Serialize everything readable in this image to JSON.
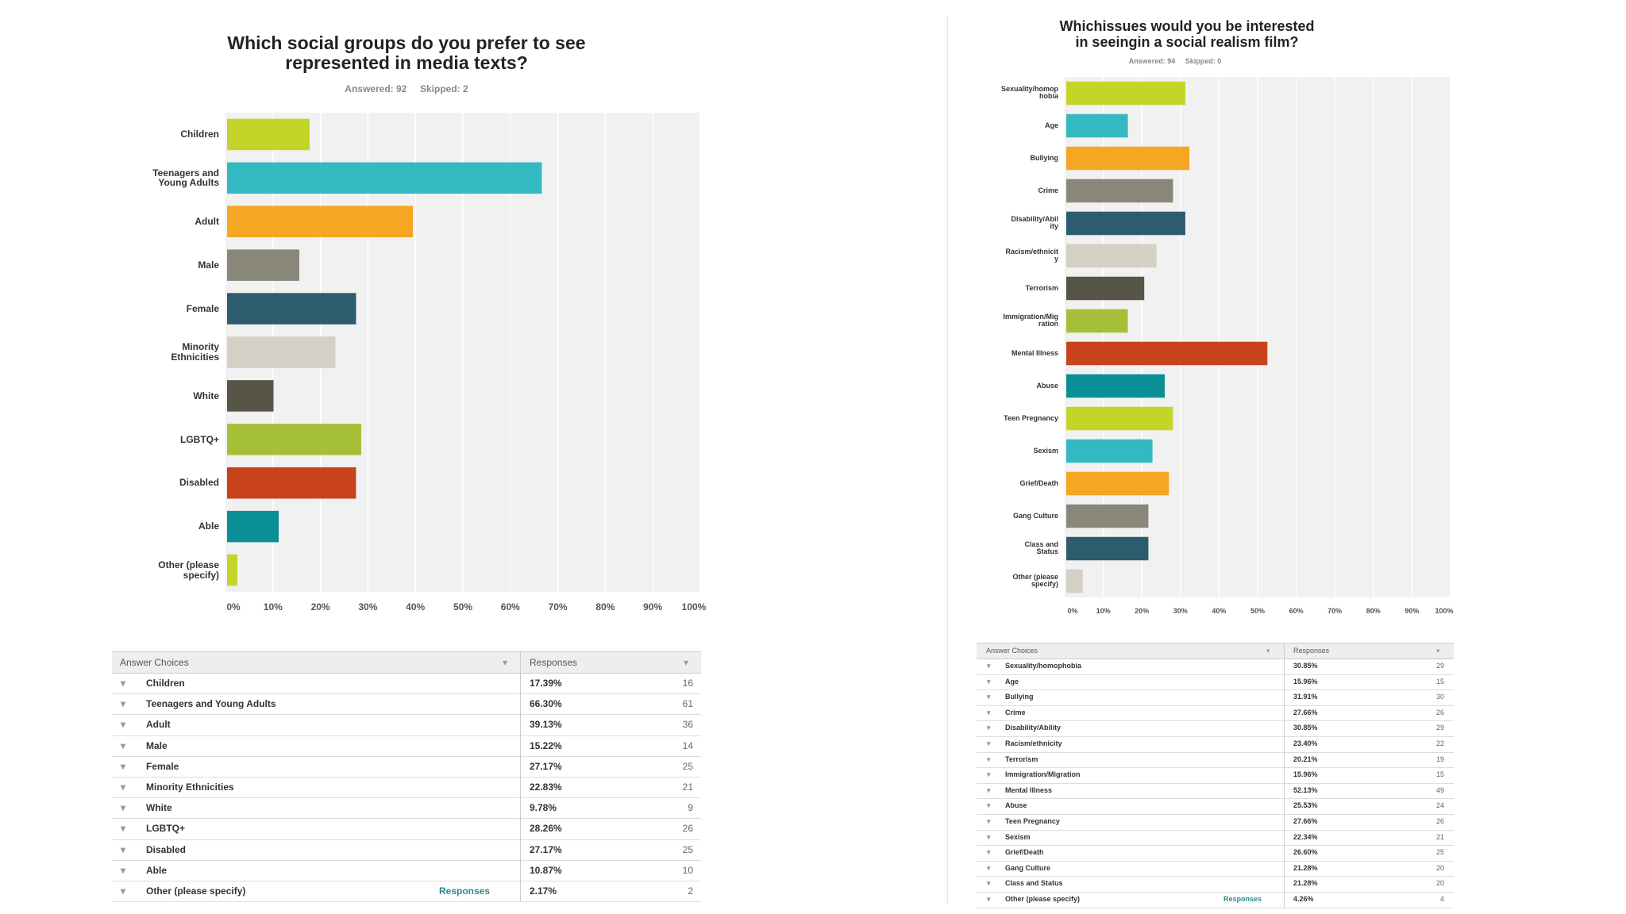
{
  "chart_data": [
    {
      "type": "bar",
      "orientation": "horizontal",
      "title": "Which social groups do you prefer to see represented in media texts?",
      "answered": "Answered: 92",
      "skipped": "Skipped: 2",
      "categories": [
        "Children",
        "Teenagers and Young Adults",
        "Adult",
        "Male",
        "Female",
        "Minority Ethnicities",
        "White",
        "LGBTQ+",
        "Disabled",
        "Able",
        "Other (please specify)"
      ],
      "values": [
        17.39,
        66.3,
        39.13,
        15.22,
        27.17,
        22.83,
        9.78,
        28.26,
        27.17,
        10.87,
        2.17
      ],
      "counts": [
        "16",
        "61",
        "36",
        "14",
        "25",
        "21",
        "9",
        "26",
        "25",
        "10",
        "2"
      ],
      "percent_labels": [
        "17.39%",
        "66.30%",
        "39.13%",
        "15.22%",
        "27.17%",
        "22.83%",
        "9.78%",
        "28.26%",
        "27.17%",
        "10.87%",
        "2.17%"
      ],
      "xlim": [
        0,
        100
      ],
      "x_ticks": [
        "0%",
        "10%",
        "20%",
        "30%",
        "40%",
        "50%",
        "60%",
        "70%",
        "80%",
        "90%",
        "100%"
      ],
      "colors": [
        "#c5d429",
        "#34b9c2",
        "#f5a623",
        "#88877a",
        "#2d5c6e",
        "#d3d0c5",
        "#565548",
        "#a6bf38",
        "#c8431b",
        "#0a8f96",
        "#c5d429"
      ],
      "grid": true
    },
    {
      "type": "bar",
      "orientation": "horizontal",
      "title": "Whichissues would you be interested in seeingin a social realism film?",
      "answered": "Answered: 94",
      "skipped": "Skipped: 0",
      "categories": [
        "Sexuality/homophobia",
        "Age",
        "Bullying",
        "Crime",
        "Disability/Ability",
        "Racism/ethnicity",
        "Terrorism",
        "Immigration/Migration",
        "Mental Illness",
        "Abuse",
        "Teen Pregnancy",
        "Sexism",
        "Grief/Death",
        "Gang Culture",
        "Class and Status",
        "Other (please specify)"
      ],
      "values": [
        30.85,
        15.96,
        31.91,
        27.66,
        30.85,
        23.4,
        20.21,
        15.96,
        52.13,
        25.53,
        27.66,
        22.34,
        26.6,
        21.28,
        21.28,
        4.26
      ],
      "counts": [
        "29",
        "15",
        "30",
        "26",
        "29",
        "22",
        "19",
        "15",
        "49",
        "24",
        "26",
        "21",
        "25",
        "20",
        "20",
        "4"
      ],
      "percent_labels": [
        "30.85%",
        "15.96%",
        "31.91%",
        "27.66%",
        "30.85%",
        "23.40%",
        "20.21%",
        "15.96%",
        "52.13%",
        "25.53%",
        "27.66%",
        "22.34%",
        "26.60%",
        "21.28%",
        "21.28%",
        "4.26%"
      ],
      "xlim": [
        0,
        100
      ],
      "x_ticks": [
        "0%",
        "10%",
        "20%",
        "30%",
        "40%",
        "50%",
        "60%",
        "70%",
        "80%",
        "90%",
        "100%"
      ],
      "colors": [
        "#c5d429",
        "#34b9c2",
        "#f5a623",
        "#88877a",
        "#2d5c6e",
        "#d3d0c5",
        "#565548",
        "#a6bf38",
        "#c8431b",
        "#0a8f96",
        "#c5d429",
        "#34b9c2",
        "#f5a623",
        "#88877a",
        "#2d5c6e",
        "#d3d0c5"
      ],
      "grid": true
    }
  ],
  "tables": [
    {
      "header_choices": "Answer Choices",
      "header_responses": "Responses",
      "last_row_link": "Responses",
      "rows": [
        {
          "label": "Children"
        },
        {
          "label": "Teenagers and Young Adults"
        },
        {
          "label": "Adult"
        },
        {
          "label": "Male"
        },
        {
          "label": "Female"
        },
        {
          "label": "Minority Ethnicities"
        },
        {
          "label": "White"
        },
        {
          "label": "LGBTQ+"
        },
        {
          "label": "Disabled"
        },
        {
          "label": "Able"
        },
        {
          "label": "Other (please specify)"
        }
      ]
    },
    {
      "header_choices": "Answer Choices",
      "header_responses": "Responses",
      "last_row_link": "Responses",
      "rows": [
        {
          "label": "Sexuality/homophobia"
        },
        {
          "label": "Age"
        },
        {
          "label": "Bullying"
        },
        {
          "label": "Crime"
        },
        {
          "label": "Disability/Ability"
        },
        {
          "label": "Racism/ethnicity"
        },
        {
          "label": "Terrorism"
        },
        {
          "label": "Immigration/Migration"
        },
        {
          "label": "Mental Illness"
        },
        {
          "label": "Abuse"
        },
        {
          "label": "Teen Pregnancy"
        },
        {
          "label": "Sexism"
        },
        {
          "label": "Grief/Death"
        },
        {
          "label": "Gang Culture"
        },
        {
          "label": "Class and Status"
        },
        {
          "label": "Other (please specify)"
        }
      ]
    }
  ],
  "chart_labels": [
    {
      "category_labels": [
        "Children",
        "Teenagers and\nYoung Adults",
        "Adult",
        "Male",
        "Female",
        "Minority\nEthnicities",
        "White",
        "LGBTQ+",
        "Disabled",
        "Able",
        "Other (please\nspecify)"
      ]
    },
    {
      "category_labels": [
        "Sexuality/homop\nhobia",
        "Age",
        "Bullying",
        "Crime",
        "Disability/Abil\nity",
        "Racism/ethnicit\ny",
        "Terrorism",
        "Immigration/Mig\nration",
        "Mental Illness",
        "Abuse",
        "Teen Pregnancy",
        "Sexism",
        "Grief/Death",
        "Gang Culture",
        "Class and\nStatus",
        "Other (please\nspecify)"
      ]
    }
  ]
}
